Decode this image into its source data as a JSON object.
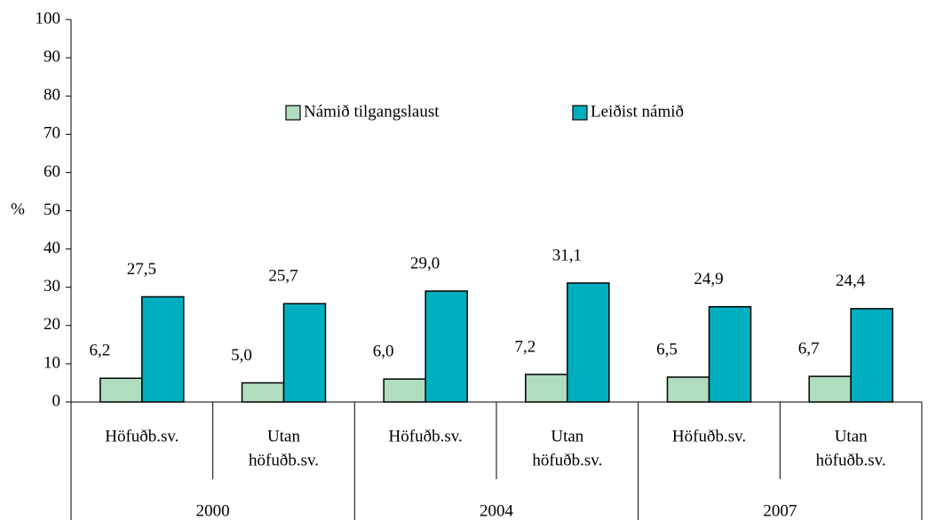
{
  "chart_data": {
    "type": "bar",
    "y_label": "%",
    "categories": [
      [
        "Höfuðb.sv."
      ],
      [
        "Utan",
        "höfuðb.sv."
      ],
      [
        "Höfuðb.sv."
      ],
      [
        "Utan",
        "höfuðb.sv."
      ],
      [
        "Höfuðb.sv."
      ],
      [
        "Utan",
        "höfuðb.sv."
      ]
    ],
    "groups": [
      "2000",
      "2004",
      "2007"
    ],
    "series": [
      {
        "name": "Námið tilgangslaust",
        "color": "#b0dcc0",
        "values": [
          6.2,
          5.0,
          6.0,
          7.2,
          6.5,
          6.7
        ],
        "value_labels": [
          "6,2",
          "5,0",
          "6,0",
          "7,2",
          "6,5",
          "6,7"
        ]
      },
      {
        "name": "Leiðist námið",
        "color": "#00afbf",
        "values": [
          27.5,
          25.7,
          29.0,
          31.1,
          24.9,
          24.4
        ],
        "value_labels": [
          "27,5",
          "25,7",
          "29,0",
          "31,1",
          "24,9",
          "24,4"
        ]
      }
    ],
    "ylim": [
      0,
      100
    ],
    "yticks": [
      0,
      10,
      20,
      30,
      40,
      50,
      60,
      70,
      80,
      90,
      100
    ],
    "legend": "top-center",
    "grid": false
  }
}
